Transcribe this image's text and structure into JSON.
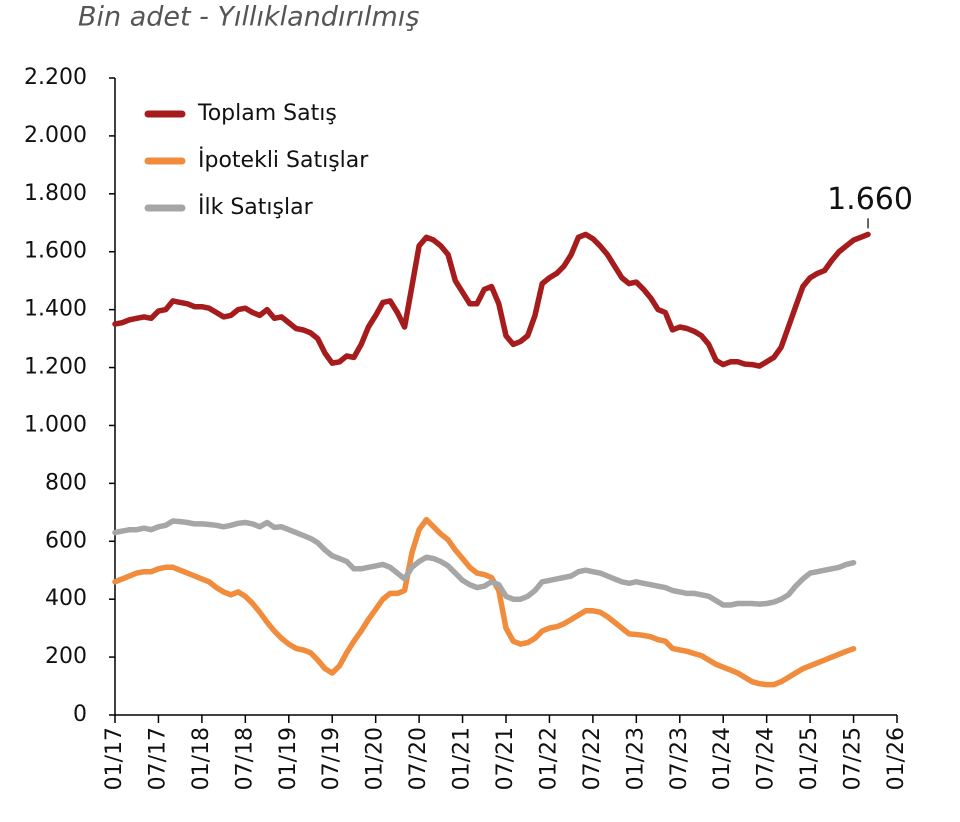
{
  "chart_data": {
    "type": "line",
    "title": "Bin adet - Yıllıklandırılmış",
    "categories": [
      "01/17",
      null,
      null,
      null,
      null,
      null,
      "07/17",
      null,
      null,
      null,
      null,
      null,
      "01/18",
      null,
      null,
      null,
      null,
      null,
      "07/18",
      null,
      null,
      null,
      null,
      null,
      "01/19",
      null,
      null,
      null,
      null,
      null,
      "07/19",
      null,
      null,
      null,
      null,
      null,
      "01/20",
      null,
      null,
      null,
      null,
      null,
      "07/20",
      null,
      null,
      null,
      null,
      null,
      "01/21",
      null,
      null,
      null,
      null,
      null,
      "07/21",
      null,
      null,
      null,
      null,
      null,
      "01/22",
      null,
      null,
      null,
      null,
      null,
      "07/22",
      null,
      null,
      null,
      null,
      null,
      "01/23",
      null,
      null,
      null,
      null,
      null,
      "07/23",
      null,
      null,
      null,
      null,
      null,
      "01/24",
      null,
      null,
      null,
      null,
      null,
      "07/24",
      null,
      null,
      null,
      null,
      null,
      "01/25",
      null,
      null,
      null,
      null,
      null,
      "07/25",
      null,
      null,
      null,
      null,
      null,
      "01/26"
    ],
    "series": [
      {
        "name": "Toplam Satış",
        "color": "#a61c1c",
        "values": [
          1350,
          1355,
          1365,
          1370,
          1375,
          1370,
          1395,
          1400,
          1430,
          1425,
          1420,
          1410,
          1410,
          1405,
          1390,
          1375,
          1380,
          1400,
          1405,
          1390,
          1380,
          1400,
          1370,
          1375,
          1355,
          1335,
          1330,
          1320,
          1300,
          1250,
          1215,
          1220,
          1240,
          1235,
          1280,
          1340,
          1380,
          1425,
          1430,
          1390,
          1340,
          1480,
          1620,
          1650,
          1640,
          1620,
          1590,
          1500,
          1460,
          1420,
          1420,
          1470,
          1480,
          1420,
          1310,
          1280,
          1290,
          1310,
          1380,
          1490,
          1510,
          1525,
          1550,
          1590,
          1650,
          1660,
          1645,
          1620,
          1590,
          1550,
          1510,
          1490,
          1495,
          1470,
          1440,
          1400,
          1390,
          1330,
          1340,
          1335,
          1325,
          1310,
          1280,
          1225,
          1210,
          1220,
          1220,
          1212,
          1210,
          1205,
          1220,
          1235,
          1270,
          1340,
          1410,
          1480,
          1510,
          1525,
          1535,
          1570,
          1600,
          1620,
          1640,
          1650,
          1660,
          null,
          null,
          null,
          null
        ],
        "value_labels": {
          "104": "1.660"
        }
      },
      {
        "name": "İpotekli Satışlar",
        "color": "#f08c3c",
        "values": [
          460,
          470,
          480,
          490,
          495,
          495,
          505,
          510,
          510,
          500,
          490,
          480,
          470,
          460,
          440,
          425,
          415,
          425,
          410,
          385,
          355,
          320,
          290,
          265,
          245,
          230,
          225,
          215,
          190,
          160,
          145,
          170,
          215,
          255,
          290,
          330,
          365,
          400,
          420,
          420,
          430,
          560,
          640,
          675,
          650,
          625,
          605,
          570,
          540,
          510,
          490,
          485,
          475,
          430,
          300,
          255,
          245,
          250,
          265,
          290,
          300,
          305,
          315,
          330,
          345,
          360,
          360,
          355,
          340,
          320,
          300,
          280,
          278,
          275,
          270,
          260,
          255,
          230,
          225,
          220,
          212,
          205,
          190,
          175,
          165,
          155,
          145,
          130,
          115,
          108,
          105,
          105,
          115,
          130,
          145,
          160,
          170,
          180,
          190,
          200,
          210,
          220,
          229,
          null,
          null,
          null,
          null,
          null,
          null
        ]
      },
      {
        "name": "İlk Satışlar",
        "color": "#a6a6a6",
        "values": [
          630,
          635,
          640,
          640,
          645,
          640,
          650,
          655,
          670,
          668,
          665,
          660,
          660,
          658,
          655,
          650,
          655,
          662,
          665,
          660,
          650,
          665,
          648,
          650,
          640,
          630,
          620,
          610,
          595,
          570,
          550,
          540,
          530,
          505,
          505,
          510,
          515,
          520,
          510,
          490,
          470,
          510,
          530,
          545,
          540,
          530,
          515,
          490,
          465,
          450,
          440,
          445,
          460,
          450,
          410,
          400,
          400,
          410,
          430,
          460,
          465,
          470,
          475,
          480,
          495,
          500,
          495,
          490,
          480,
          470,
          460,
          455,
          460,
          455,
          450,
          445,
          440,
          430,
          425,
          420,
          420,
          415,
          410,
          395,
          380,
          380,
          385,
          385,
          385,
          383,
          385,
          390,
          400,
          415,
          445,
          470,
          490,
          495,
          500,
          505,
          510,
          520,
          526,
          null,
          null,
          null,
          null,
          null,
          null
        ]
      }
    ],
    "ylim": [
      0,
      2200
    ],
    "yticks": [
      0,
      200,
      400,
      600,
      800,
      {
        "value": 1000,
        "label": "1.000"
      },
      {
        "value": 1200,
        "label": "1.200"
      },
      {
        "value": 1400,
        "label": "1.400"
      },
      {
        "value": 1600,
        "label": "1.600"
      },
      {
        "value": 1800,
        "label": "1.800"
      },
      {
        "value": 2000,
        "label": "2.000"
      },
      {
        "value": 2200,
        "label": "2.200"
      }
    ],
    "legend": "upper left"
  }
}
